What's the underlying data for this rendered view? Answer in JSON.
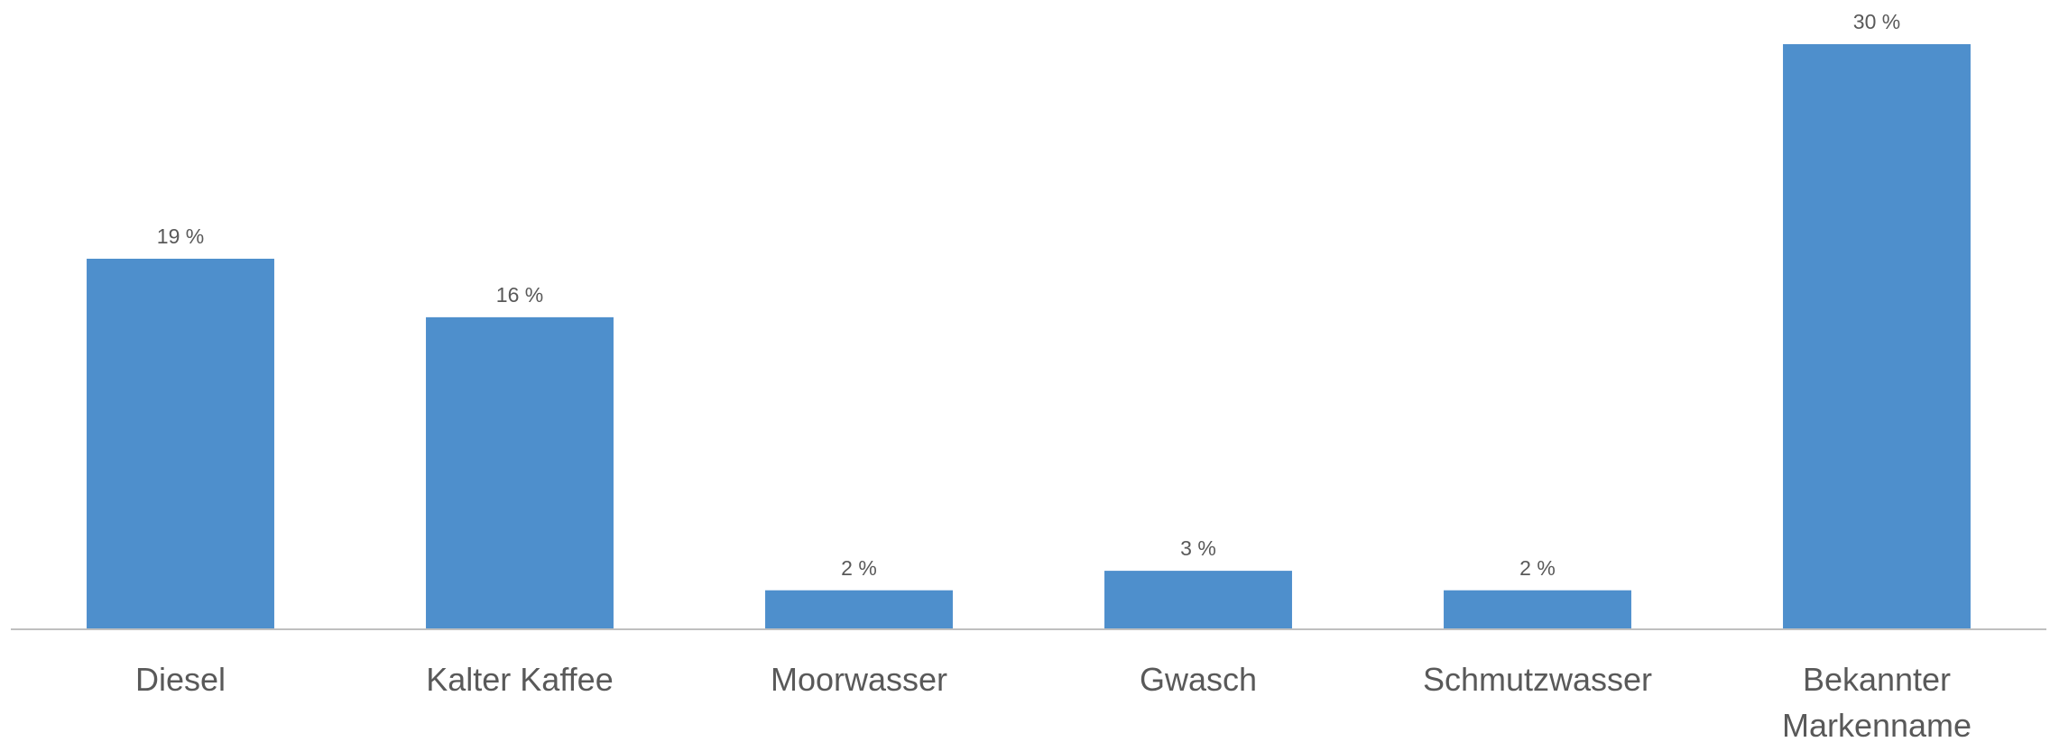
{
  "chart_data": {
    "type": "bar",
    "categories": [
      "Diesel",
      "Kalter Kaffee",
      "Moorwasser",
      "Gwasch",
      "Schmutzwasser",
      "Bekannter Markenname"
    ],
    "values": [
      19,
      16,
      2,
      3,
      2,
      30
    ],
    "value_labels": [
      "19 %",
      "16 %",
      "2 %",
      "3 %",
      "2 %",
      "30 %"
    ],
    "color": "#4e8fcc",
    "ylim": [
      0,
      30
    ]
  }
}
